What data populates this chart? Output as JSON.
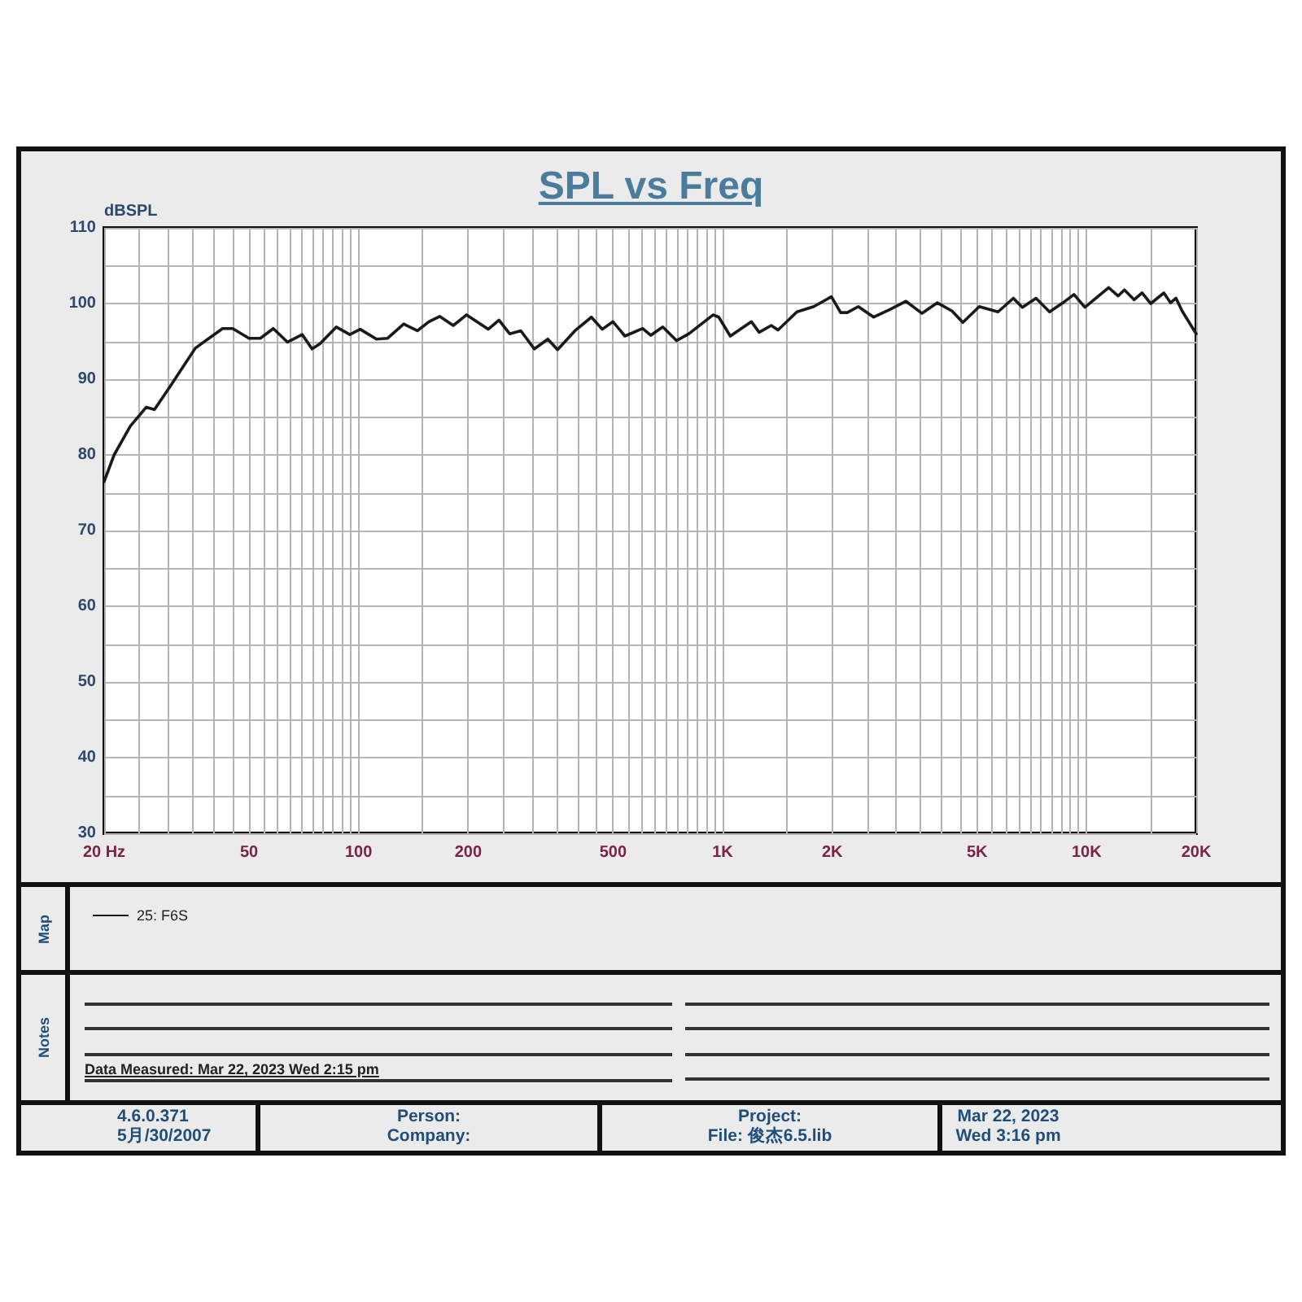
{
  "chart_data": {
    "type": "line",
    "title": "SPL vs Freq",
    "ylabel": "dBSPL",
    "log": "x",
    "grid": true,
    "legend": "bottom left",
    "x": [
      20,
      21.3,
      23.6,
      26.1,
      27.5,
      30.5,
      32.5,
      35.6,
      42.3,
      45.1,
      50,
      53.7,
      58.3,
      63.8,
      70,
      74.5,
      78.4,
      86.9,
      94.6,
      101,
      112,
      120,
      133,
      145,
      156,
      167,
      182,
      198,
      227,
      243,
      260,
      279,
      304,
      331,
      352,
      393,
      436,
      467,
      500,
      539,
      603,
      635,
      685,
      747,
      808,
      942,
      976,
      1050,
      1200,
      1260,
      1360,
      1420,
      1600,
      1780,
      1990,
      2110,
      2200,
      2360,
      2600,
      2880,
      3190,
      3530,
      3890,
      4270,
      4570,
      5070,
      5710,
      6290,
      6660,
      7260,
      7910,
      8610,
      9230,
      9890,
      11500,
      12200,
      12700,
      13500,
      14200,
      15000,
      16300,
      17000,
      17600,
      18300,
      20000
    ],
    "series": [
      {
        "name": "25: F6S",
        "color": "#1a1a1a",
        "values": [
          76.5,
          80,
          83.8,
          86.3,
          86,
          89.2,
          91.2,
          94.1,
          96.7,
          96.7,
          95.4,
          95.4,
          96.7,
          94.9,
          95.9,
          94,
          94.7,
          96.9,
          95.9,
          96.6,
          95.3,
          95.4,
          97.3,
          96.4,
          97.6,
          98.3,
          97.1,
          98.5,
          96.6,
          97.8,
          96,
          96.4,
          94,
          95.3,
          93.9,
          96.4,
          98.2,
          96.6,
          97.6,
          95.7,
          96.7,
          95.8,
          96.9,
          95.1,
          96,
          98.5,
          98.2,
          95.7,
          97.6,
          96.2,
          97.1,
          96.5,
          98.9,
          99.6,
          100.9,
          98.8,
          98.8,
          99.6,
          98.2,
          99.2,
          100.3,
          98.7,
          100.1,
          99,
          97.5,
          99.6,
          98.9,
          100.7,
          99.5,
          100.7,
          98.9,
          100.1,
          101.2,
          99.5,
          102.1,
          101,
          101.8,
          100.5,
          101.4,
          100,
          101.4,
          100.1,
          100.7,
          99,
          96
        ]
      }
    ],
    "xlim": [
      20,
      20000
    ],
    "xticks": [
      {
        "value": 20,
        "label": "20 Hz"
      },
      {
        "value": 25,
        "label": null
      },
      {
        "value": 30,
        "label": null
      },
      {
        "value": 35,
        "label": null
      },
      {
        "value": 40,
        "label": null
      },
      {
        "value": 45,
        "label": null
      },
      50,
      {
        "value": 55,
        "label": null
      },
      {
        "value": 60,
        "label": null
      },
      {
        "value": 65,
        "label": null
      },
      {
        "value": 70,
        "label": null
      },
      {
        "value": 75,
        "label": null
      },
      {
        "value": 80,
        "label": null
      },
      {
        "value": 85,
        "label": null
      },
      {
        "value": 90,
        "label": null
      },
      {
        "value": 95,
        "label": null
      },
      100,
      {
        "value": 150,
        "label": null
      },
      200,
      {
        "value": 250,
        "label": null
      },
      {
        "value": 300,
        "label": null
      },
      {
        "value": 350,
        "label": null
      },
      {
        "value": 400,
        "label": null
      },
      {
        "value": 450,
        "label": null
      },
      500,
      {
        "value": 550,
        "label": null
      },
      {
        "value": 600,
        "label": null
      },
      {
        "value": 650,
        "label": null
      },
      {
        "value": 700,
        "label": null
      },
      {
        "value": 750,
        "label": null
      },
      {
        "value": 800,
        "label": null
      },
      {
        "value": 850,
        "label": null
      },
      {
        "value": 900,
        "label": null
      },
      {
        "value": 950,
        "label": null
      },
      {
        "value": 1000,
        "label": "1K"
      },
      {
        "value": 1500,
        "label": null
      },
      {
        "value": 2000,
        "label": "2K"
      },
      {
        "value": 2500,
        "label": null
      },
      {
        "value": 3000,
        "label": null
      },
      {
        "value": 3500,
        "label": null
      },
      {
        "value": 4000,
        "label": null
      },
      {
        "value": 4500,
        "label": null
      },
      {
        "value": 5000,
        "label": "5K"
      },
      {
        "value": 5500,
        "label": null
      },
      {
        "value": 6000,
        "label": null
      },
      {
        "value": 6500,
        "label": null
      },
      {
        "value": 7000,
        "label": null
      },
      {
        "value": 7500,
        "label": null
      },
      {
        "value": 8000,
        "label": null
      },
      {
        "value": 8500,
        "label": null
      },
      {
        "value": 9000,
        "label": null
      },
      {
        "value": 9500,
        "label": null
      },
      {
        "value": 10000,
        "label": "10K"
      },
      {
        "value": 15000,
        "label": null
      },
      {
        "value": 20000,
        "label": "20K"
      }
    ],
    "ylim": [
      30,
      110
    ],
    "yticks": [
      30,
      {
        "value": 35,
        "label": null
      },
      40,
      {
        "value": 45,
        "label": null
      },
      50,
      {
        "value": 55,
        "label": null
      },
      60,
      {
        "value": 65,
        "label": null
      },
      70,
      {
        "value": 75,
        "label": null
      },
      80,
      {
        "value": 85,
        "label": null
      },
      90,
      {
        "value": 95,
        "label": null
      },
      100,
      {
        "value": 105,
        "label": null
      },
      110
    ],
    "annotations": [
      "Map",
      "Notes",
      "Data Measured: Mar 22, 2023 Wed 2:15 pm",
      "4.6.0.371",
      "5月/30/2007",
      "Person:",
      "Company:",
      "Project:",
      "File: 俊杰6.5.lib",
      "Mar 22, 2023",
      "Wed 3:16 pm"
    ]
  }
}
